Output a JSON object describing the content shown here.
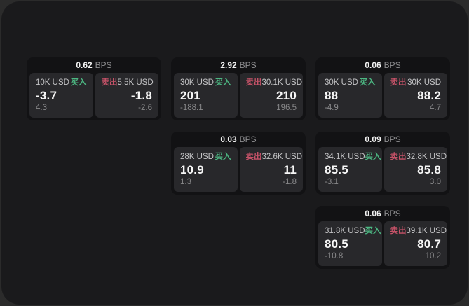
{
  "labels": {
    "unit": "BPS",
    "buy": "买入",
    "sell": "卖出"
  },
  "colors": {
    "buy_green": "#4cb782",
    "sell_red": "#c65268",
    "page_bg": "#1a1a1c",
    "card_bg": "#121214",
    "panel_bg": "#28282b"
  },
  "cards": [
    {
      "bps": "0.62",
      "buy": {
        "size": "10K USD",
        "price": "-3.7",
        "delta": "4.3"
      },
      "sell": {
        "size": "5.5K USD",
        "price": "-1.8",
        "delta": "-2.6"
      }
    },
    {
      "bps": "2.92",
      "buy": {
        "size": "30K USD",
        "price": "201",
        "delta": "-188.1"
      },
      "sell": {
        "size": "30.1K USD",
        "price": "210",
        "delta": "196.5"
      }
    },
    {
      "bps": "0.06",
      "buy": {
        "size": "30K USD",
        "price": "88",
        "delta": "-4.9"
      },
      "sell": {
        "size": "30K USD",
        "price": "88.2",
        "delta": "4.7"
      }
    },
    {
      "bps": "0.03",
      "buy": {
        "size": "28K USD",
        "price": "10.9",
        "delta": "1.3"
      },
      "sell": {
        "size": "32.6K USD",
        "price": "11",
        "delta": "-1.8"
      }
    },
    {
      "bps": "0.09",
      "buy": {
        "size": "34.1K USD",
        "price": "85.5",
        "delta": "-3.1"
      },
      "sell": {
        "size": "32.8K USD",
        "price": "85.8",
        "delta": "3.0"
      }
    },
    {
      "bps": "0.06",
      "buy": {
        "size": "31.8K USD",
        "price": "80.5",
        "delta": "-10.8"
      },
      "sell": {
        "size": "39.1K USD",
        "price": "80.7",
        "delta": "10.2"
      }
    }
  ]
}
